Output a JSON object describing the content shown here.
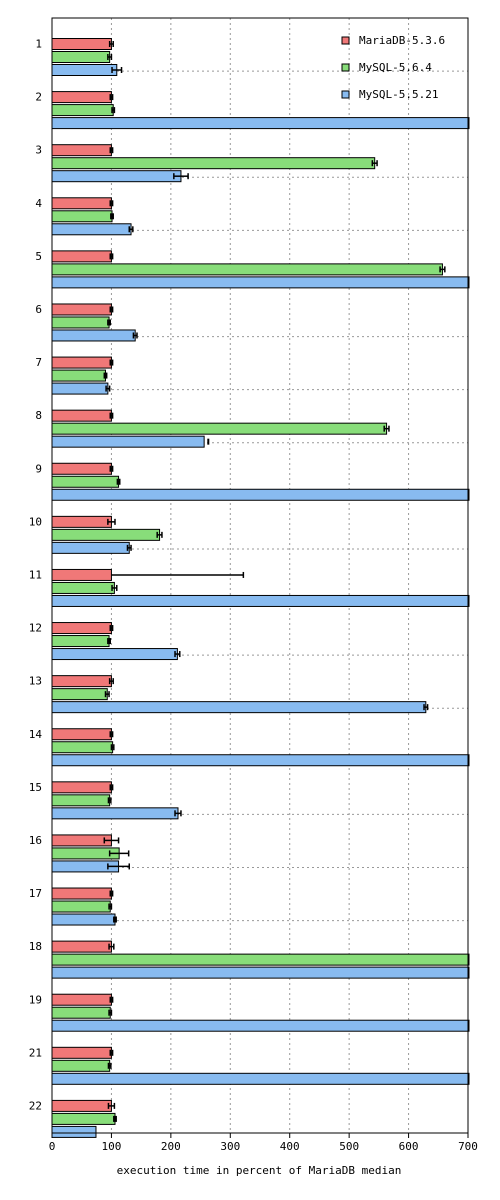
{
  "chart_data": {
    "type": "bar",
    "orientation": "horizontal",
    "title": "",
    "xlabel": "execution time in percent of MariaDB median",
    "ylabel": "",
    "xlim": [
      0,
      700
    ],
    "x_ticks": [
      "0",
      "100",
      "200",
      "300",
      "400",
      "500",
      "600",
      "700"
    ],
    "grid": true,
    "legend_position": "top-right",
    "categories": [
      "1",
      "2",
      "3",
      "4",
      "5",
      "6",
      "7",
      "8",
      "9",
      "10",
      "11",
      "12",
      "13",
      "14",
      "15",
      "16",
      "17",
      "18",
      "19",
      "21",
      "22"
    ],
    "series": [
      {
        "name": "MariaDB-5.3.6",
        "color": "#f07878",
        "values": [
          100,
          100,
          100,
          100,
          100,
          100,
          100,
          100,
          100,
          100,
          100,
          100,
          100,
          100,
          100,
          100,
          100,
          100,
          100,
          100,
          100
        ],
        "err": [
          3,
          2,
          2,
          2,
          2,
          2,
          2,
          2,
          2,
          6,
          0,
          2,
          3,
          2,
          2,
          12,
          2,
          4,
          2,
          2,
          5
        ]
      },
      {
        "name": "MySQL-5.6.4",
        "color": "#88dd7a",
        "values": [
          97,
          103,
          543,
          101,
          657,
          96,
          90,
          563,
          112,
          181,
          105,
          96,
          93,
          102,
          97,
          113,
          98,
          700,
          98,
          97,
          106
        ],
        "err": [
          3,
          2,
          4,
          2,
          4,
          2,
          2,
          4,
          2,
          4,
          4,
          2,
          3,
          2,
          2,
          16,
          2,
          0,
          2,
          2,
          2
        ]
      },
      {
        "name": "MySQL-5.5.21",
        "color": "#88bbf0",
        "values": [
          109,
          700,
          217,
          133,
          700,
          140,
          94,
          256,
          700,
          130,
          700,
          211,
          629,
          700,
          212,
          112,
          106,
          700,
          700,
          700,
          74
        ],
        "err": [
          8,
          0,
          12,
          3,
          0,
          3,
          3,
          0,
          0,
          3,
          0,
          4,
          3,
          0,
          5,
          18,
          2,
          0,
          0,
          0,
          0
        ]
      }
    ],
    "annotations": [
      {
        "category": "11",
        "series": "MariaDB-5.3.6",
        "whisker_to": 322
      },
      {
        "category": "8",
        "series": "MySQL-5.5.21",
        "marker_at": 263
      }
    ]
  }
}
